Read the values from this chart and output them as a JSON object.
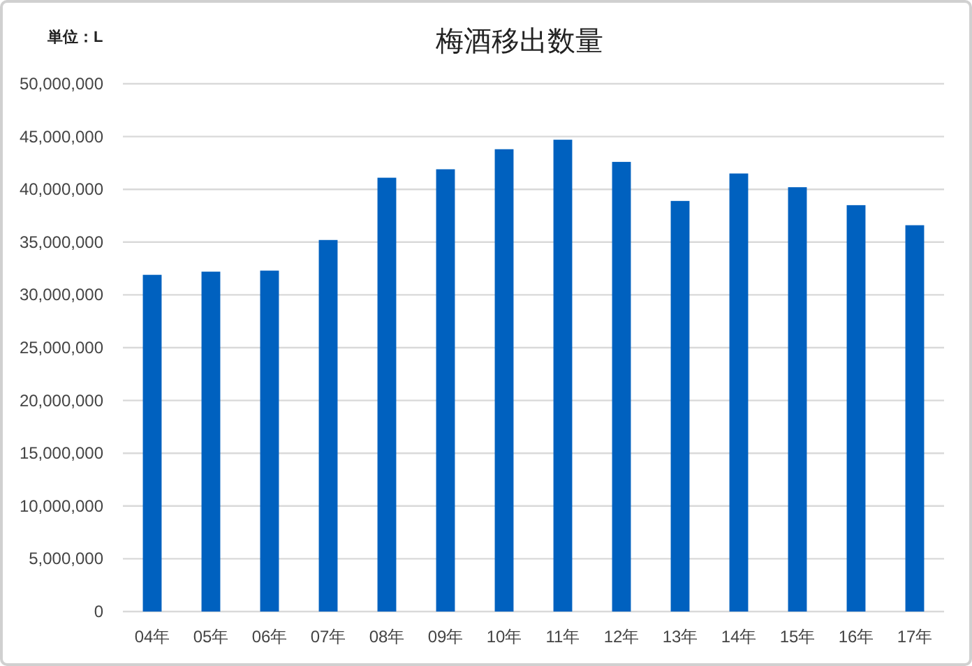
{
  "chart_data": {
    "type": "bar",
    "title": "梅酒移出数量",
    "annotations": [
      "単位：L"
    ],
    "categories": [
      "04年",
      "05年",
      "06年",
      "07年",
      "08年",
      "09年",
      "10年",
      "11年",
      "12年",
      "13年",
      "14年",
      "15年",
      "16年",
      "17年"
    ],
    "values": [
      31900000,
      32200000,
      32300000,
      35200000,
      41100000,
      41900000,
      43800000,
      44700000,
      42600000,
      38900000,
      41500000,
      40200000,
      38500000,
      36600000
    ],
    "color": "#0061bf",
    "ylim": [
      0,
      50000000
    ],
    "yticks": [
      {
        "value": 0,
        "label": "0"
      },
      {
        "value": 5000000,
        "label": "5,000,000"
      },
      {
        "value": 10000000,
        "label": "10,000,000"
      },
      {
        "value": 15000000,
        "label": "15,000,000"
      },
      {
        "value": 20000000,
        "label": "20,000,000"
      },
      {
        "value": 25000000,
        "label": "25,000,000"
      },
      {
        "value": 30000000,
        "label": "30,000,000"
      },
      {
        "value": 35000000,
        "label": "35,000,000"
      },
      {
        "value": 40000000,
        "label": "40,000,000"
      },
      {
        "value": 45000000,
        "label": "45,000,000"
      },
      {
        "value": 50000000,
        "label": "50,000,000"
      }
    ],
    "grid": "y"
  }
}
